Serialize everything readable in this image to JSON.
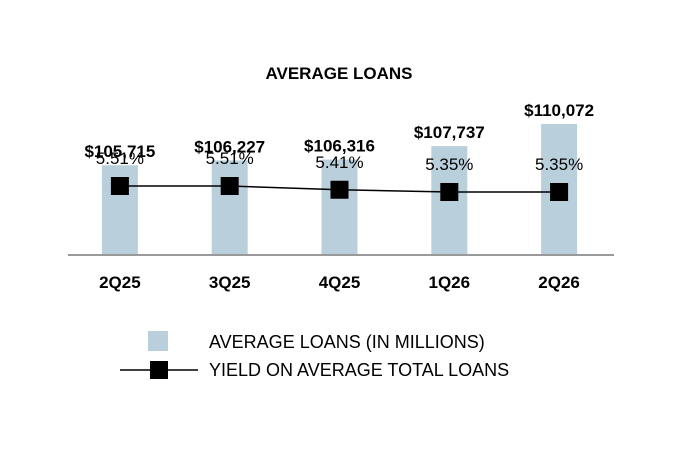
{
  "chart_data": {
    "type": "bar",
    "title": "AVERAGE LOANS",
    "categories": [
      "2Q25",
      "3Q25",
      "4Q25",
      "1Q26",
      "2Q26"
    ],
    "series": [
      {
        "name": "AVERAGE LOANS (IN MILLIONS)",
        "type": "bar",
        "values": [
          105715,
          106227,
          106316,
          107737,
          110072
        ],
        "labels": [
          "$105,715",
          "$106,227",
          "$106,316",
          "$107,737",
          "$110,072"
        ],
        "color": "#b9d0dc"
      },
      {
        "name": "YIELD ON AVERAGE TOTAL LOANS",
        "type": "line",
        "values": [
          5.51,
          5.51,
          5.41,
          5.35,
          5.35
        ],
        "labels": [
          "5.51%",
          "5.51%",
          "5.41%",
          "5.35%",
          "5.35%"
        ],
        "color": "#000000",
        "marker": "square"
      }
    ],
    "grid": false,
    "legend_position": "bottom",
    "xlabel": "",
    "ylabel": ""
  }
}
